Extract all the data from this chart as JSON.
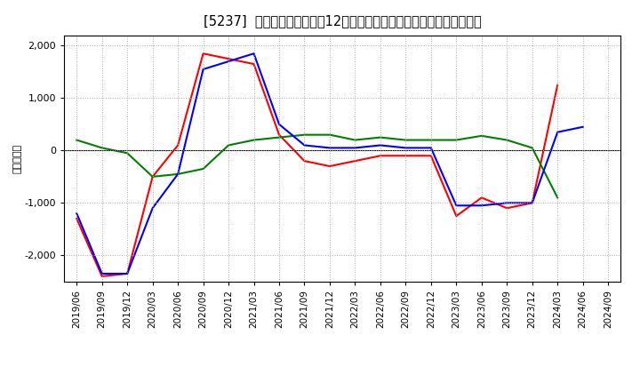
{
  "title": "[5237]  キャッシュフローの12か月移動合計の対前年同期増減額の推移",
  "ylabel": "（百万円）",
  "x_labels": [
    "2019/06",
    "2019/09",
    "2019/12",
    "2020/03",
    "2020/06",
    "2020/09",
    "2020/12",
    "2021/03",
    "2021/06",
    "2021/09",
    "2021/12",
    "2022/03",
    "2022/06",
    "2022/09",
    "2022/12",
    "2023/03",
    "2023/06",
    "2023/09",
    "2023/12",
    "2024/03",
    "2024/06",
    "2024/09"
  ],
  "eigyo_cf": [
    -1300,
    -2400,
    -2350,
    -500,
    100,
    1850,
    1750,
    1650,
    300,
    -200,
    -300,
    -200,
    -100,
    -100,
    -100,
    -1250,
    -900,
    -1100,
    -1000,
    1250,
    null,
    null
  ],
  "toshi_cf": [
    200,
    50,
    -50,
    -500,
    -450,
    -350,
    100,
    200,
    250,
    300,
    300,
    200,
    250,
    200,
    200,
    200,
    280,
    200,
    50,
    -900,
    null,
    null
  ],
  "free_cf": [
    -1200,
    -2350,
    -2350,
    -1100,
    -450,
    1550,
    1700,
    1850,
    500,
    100,
    50,
    50,
    100,
    50,
    50,
    -1050,
    -1050,
    -1000,
    -1000,
    350,
    450,
    null
  ],
  "ylim": [
    -2500,
    2200
  ],
  "yticks": [
    -2000,
    -1000,
    0,
    1000,
    2000
  ],
  "color_eigyo": "#ff0000",
  "color_toshi": "#008000",
  "color_free": "#0000ff",
  "background_color": "#ffffff",
  "grid_color": "#aaaaaa"
}
